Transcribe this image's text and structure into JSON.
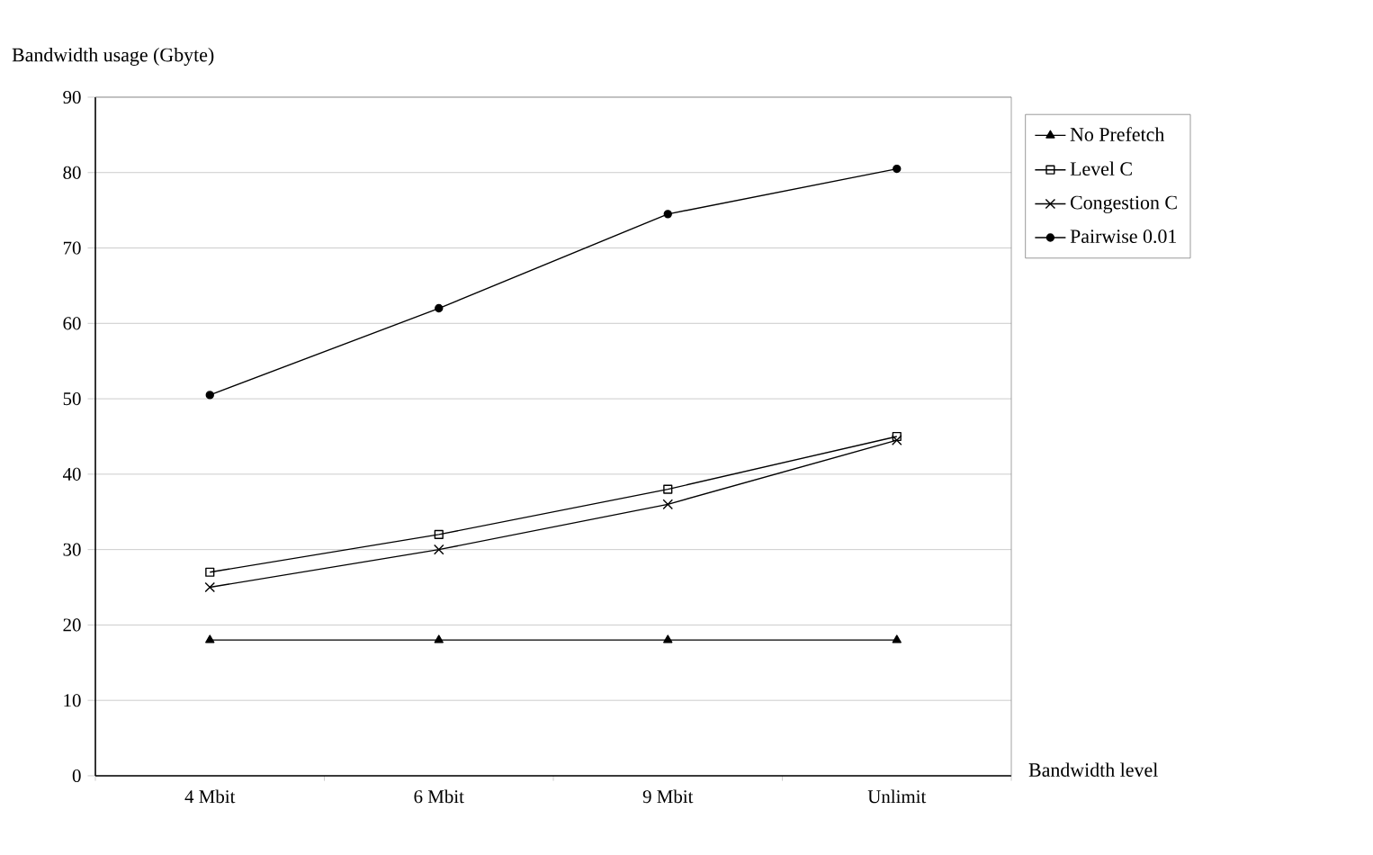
{
  "chart_data": {
    "type": "line",
    "xlabel": "Bandwidth level",
    "ylabel": "Bandwidth usage (Gbyte)",
    "categories": [
      "4 Mbit",
      "6 Mbit",
      "9 Mbit",
      "Unlimit"
    ],
    "series": [
      {
        "name": "No Prefetch",
        "color": "#000000",
        "marker": "triangle",
        "values": [
          18,
          18,
          18,
          18
        ]
      },
      {
        "name": "Level C",
        "color": "#000000",
        "marker": "square",
        "values": [
          27,
          32,
          38,
          45
        ]
      },
      {
        "name": "Congestion C",
        "color": "#000000",
        "marker": "cross",
        "values": [
          25,
          30,
          36,
          44.5
        ]
      },
      {
        "name": "Pairwise 0.01",
        "color": "#000000",
        "marker": "circle",
        "values": [
          50.5,
          62,
          74.5,
          80.5
        ]
      }
    ],
    "ylim": [
      0,
      90
    ],
    "yticks": [
      0,
      10,
      20,
      30,
      40,
      50,
      60,
      70,
      80,
      90
    ],
    "grid": "y",
    "legend": "top right",
    "line_style": "solid"
  }
}
